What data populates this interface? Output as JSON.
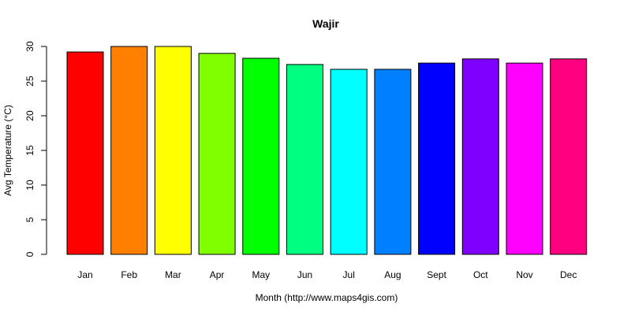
{
  "chart_data": {
    "type": "bar",
    "title": "Wajir",
    "xlabel": "Month (http://www.maps4gis.com)",
    "ylabel": "Avg Temperature (°C)",
    "categories": [
      "Jan",
      "Feb",
      "Mar",
      "Apr",
      "May",
      "Jun",
      "Jul",
      "Aug",
      "Sept",
      "Oct",
      "Nov",
      "Dec"
    ],
    "values": [
      29.2,
      30.0,
      30.0,
      29.0,
      28.3,
      27.4,
      26.7,
      26.7,
      27.6,
      28.2,
      27.6,
      28.2
    ],
    "colors": [
      "#FF0000",
      "#FF8000",
      "#FFFF00",
      "#80FF00",
      "#00FF00",
      "#00FF80",
      "#00FFFF",
      "#0080FF",
      "#0000FF",
      "#8000FF",
      "#FF00FF",
      "#FF0080"
    ],
    "yticks": [
      0,
      5,
      10,
      15,
      20,
      25,
      30
    ],
    "ylim": [
      0,
      30
    ],
    "grid": false,
    "legend": "none"
  }
}
